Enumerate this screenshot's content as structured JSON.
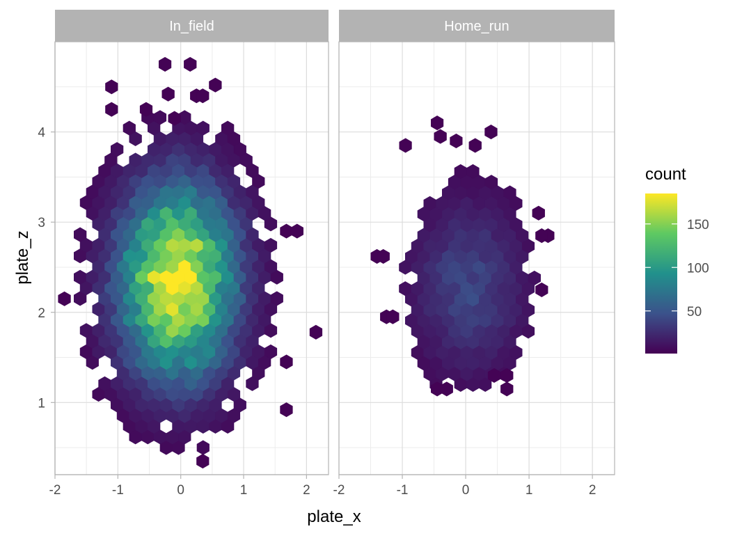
{
  "chart_data": {
    "type": "heatmap",
    "subtype": "hexbin",
    "title": "",
    "xlabel": "plate_x",
    "ylabel": "plate_z",
    "xlim": [
      -2,
      2.35
    ],
    "ylim": [
      0.2,
      5.0
    ],
    "x_ticks": [
      "-2",
      "-1",
      "0",
      "1",
      "2"
    ],
    "y_ticks": [
      "1",
      "2",
      "3",
      "4"
    ],
    "grid": true,
    "legend": {
      "title": "count",
      "position": "right",
      "range": [
        1,
        185
      ],
      "ticks": [
        "50",
        "100",
        "150"
      ]
    },
    "colormap": [
      "#440154",
      "#3b528b",
      "#21918c",
      "#5ec962",
      "#fde725"
    ],
    "panels": [
      {
        "label": "In_field",
        "center": [
          -0.05,
          2.35
        ],
        "spread": [
          0.62,
          0.72
        ],
        "peak": 185,
        "extent": {
          "x": [
            -1.6,
            1.45
          ],
          "y": [
            0.5,
            4.05
          ]
        },
        "outliers": [
          [
            -1.85,
            2.15
          ],
          [
            2.15,
            1.78
          ],
          [
            1.68,
            0.92
          ],
          [
            -0.25,
            4.75
          ],
          [
            0.15,
            4.75
          ],
          [
            -1.1,
            4.5
          ],
          [
            -1.1,
            4.25
          ],
          [
            0.55,
            4.52
          ],
          [
            -0.2,
            4.42
          ],
          [
            0.25,
            4.4
          ],
          [
            0.35,
            4.4
          ],
          [
            -0.55,
            4.25
          ],
          [
            -0.1,
            4.15
          ],
          [
            1.68,
            1.45
          ],
          [
            1.68,
            2.9
          ],
          [
            1.85,
            2.9
          ],
          [
            0.35,
            0.35
          ]
        ]
      },
      {
        "label": "Home_run",
        "center": [
          0.05,
          2.3
        ],
        "spread": [
          0.6,
          0.65
        ],
        "peak": 40,
        "extent": {
          "x": [
            -1.05,
            0.9
          ],
          "y": [
            1.2,
            3.7
          ]
        },
        "outliers": [
          [
            -1.4,
            2.62
          ],
          [
            -1.3,
            2.62
          ],
          [
            -1.25,
            1.95
          ],
          [
            -1.15,
            1.95
          ],
          [
            1.3,
            2.85
          ],
          [
            1.2,
            2.85
          ],
          [
            1.2,
            2.25
          ],
          [
            1.15,
            3.1
          ],
          [
            -0.45,
            4.1
          ],
          [
            -0.4,
            3.95
          ],
          [
            0.4,
            4.0
          ],
          [
            -0.95,
            3.85
          ],
          [
            -0.15,
            3.9
          ],
          [
            0.15,
            3.85
          ],
          [
            -0.45,
            1.15
          ],
          [
            -0.3,
            1.15
          ],
          [
            0.65,
            1.15
          ],
          [
            0.65,
            1.3
          ],
          [
            0.45,
            1.3
          ]
        ]
      }
    ]
  }
}
